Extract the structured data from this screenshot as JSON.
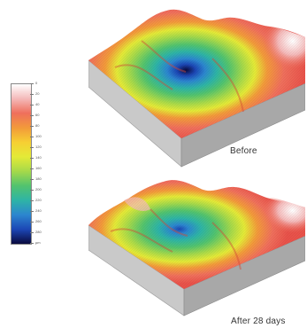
{
  "colorbar": {
    "colors": [
      "#ffffff",
      "#f4b9b9",
      "#ef6f5c",
      "#f29a3a",
      "#f6cf33",
      "#e4ea37",
      "#a6d94a",
      "#52c36e",
      "#2eb4a6",
      "#2c86cf",
      "#1c47b5",
      "#0a0a3e"
    ],
    "ticks": [
      "0",
      "20",
      "40",
      "60",
      "80",
      "100",
      "120",
      "140",
      "160",
      "180",
      "200",
      "220",
      "240",
      "260",
      "280",
      "µm"
    ]
  },
  "panels": [
    {
      "caption": "Before"
    },
    {
      "caption": "After 28 days"
    }
  ]
}
